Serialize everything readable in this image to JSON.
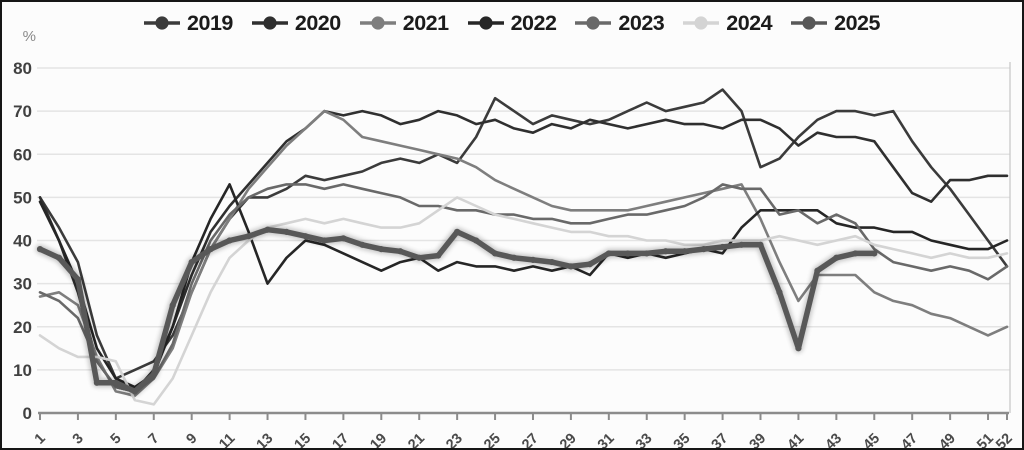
{
  "chart_data": {
    "type": "line",
    "title": "",
    "y_unit_label": "%",
    "ylim": [
      0,
      80
    ],
    "y_ticks": [
      0,
      10,
      20,
      30,
      40,
      50,
      60,
      70,
      80
    ],
    "x_ticks": [
      1,
      3,
      5,
      7,
      9,
      11,
      13,
      15,
      17,
      19,
      21,
      23,
      25,
      27,
      29,
      31,
      33,
      35,
      37,
      39,
      41,
      43,
      45,
      47,
      49,
      51,
      52
    ],
    "x_start_week": 1,
    "x_end_week": 52,
    "grid": true,
    "legend_position": "top",
    "colors": {
      "grid": "#e4e4e4",
      "axis": "#8c8c8c",
      "tick_label": "#4a4a4a",
      "y_label": "#414141",
      "unit_label": "#8a8a8a",
      "plot_right_border": "#c9c9c9"
    },
    "series": [
      {
        "name": "2019",
        "color": "#3b3b3b",
        "width": 2.6,
        "markers": false,
        "values": [
          50,
          43,
          35,
          18,
          8,
          10,
          12,
          18,
          28,
          38,
          45,
          50,
          50,
          52,
          55,
          54,
          55,
          56,
          58,
          59,
          58,
          60,
          58,
          64,
          73,
          70,
          67,
          69,
          68,
          67,
          68,
          70,
          72,
          70,
          71,
          72,
          75,
          70,
          57,
          59,
          64,
          68,
          70,
          70,
          69,
          70,
          63,
          57,
          52,
          46,
          40,
          34
        ]
      },
      {
        "name": "2020",
        "color": "#2f2f2f",
        "width": 2.6,
        "markers": false,
        "values": [
          50,
          40,
          28,
          12,
          6,
          5,
          10,
          20,
          32,
          42,
          48,
          53,
          58,
          63,
          66,
          70,
          69,
          70,
          69,
          67,
          68,
          70,
          69,
          67,
          68,
          66,
          65,
          67,
          66,
          68,
          67,
          66,
          67,
          68,
          67,
          67,
          66,
          68,
          68,
          66,
          62,
          65,
          64,
          64,
          63,
          57,
          51,
          49,
          54,
          54,
          55,
          55
        ]
      },
      {
        "name": "2021",
        "color": "#7e7e7e",
        "width": 2.6,
        "markers": false,
        "values": [
          27,
          28,
          25,
          13,
          5,
          4,
          8,
          15,
          28,
          38,
          45,
          52,
          57,
          62,
          66,
          70,
          68,
          64,
          63,
          62,
          61,
          60,
          59,
          57,
          54,
          52,
          50,
          48,
          47,
          47,
          47,
          47,
          48,
          49,
          50,
          51,
          52,
          53,
          45,
          35,
          26,
          32,
          32,
          32,
          28,
          26,
          25,
          23,
          22,
          20,
          18,
          20
        ]
      },
      {
        "name": "2022",
        "color": "#262626",
        "width": 2.6,
        "markers": false,
        "values": [
          49,
          40,
          30,
          15,
          8,
          6,
          9,
          20,
          35,
          45,
          53,
          42,
          30,
          36,
          40,
          39,
          37,
          35,
          33,
          35,
          36,
          33,
          35,
          34,
          34,
          33,
          34,
          33,
          34,
          32,
          37,
          36,
          37,
          36,
          37,
          38,
          37,
          43,
          47,
          47,
          47,
          47,
          44,
          43,
          43,
          42,
          42,
          40,
          39,
          38,
          38,
          40
        ]
      },
      {
        "name": "2023",
        "color": "#696969",
        "width": 2.6,
        "markers": false,
        "values": [
          28,
          26,
          22,
          12,
          6,
          5,
          8,
          16,
          30,
          40,
          46,
          50,
          52,
          53,
          53,
          52,
          53,
          52,
          51,
          50,
          48,
          48,
          47,
          47,
          46,
          46,
          45,
          45,
          44,
          44,
          45,
          46,
          46,
          47,
          48,
          50,
          53,
          52,
          52,
          46,
          47,
          44,
          46,
          44,
          38,
          35,
          34,
          33,
          34,
          33,
          31,
          34
        ]
      },
      {
        "name": "2024",
        "color": "#d4d4d4",
        "width": 2.6,
        "markers": false,
        "values": [
          18,
          15,
          13,
          13,
          12,
          3,
          2,
          8,
          18,
          28,
          36,
          40,
          43,
          44,
          45,
          44,
          45,
          44,
          43,
          43,
          44,
          47,
          50,
          48,
          46,
          45,
          44,
          43,
          42,
          42,
          41,
          41,
          40,
          40,
          39,
          39,
          40,
          40,
          40,
          41,
          40,
          39,
          40,
          41,
          39,
          38,
          37,
          36,
          37,
          36,
          36,
          37
        ]
      },
      {
        "name": "2025",
        "color": "#585858",
        "width": 5.5,
        "markers": true,
        "values": [
          38,
          36,
          31,
          7,
          7,
          5,
          9,
          25,
          35,
          38,
          40,
          41,
          42.5,
          42,
          41,
          40,
          40.5,
          39,
          38,
          37.5,
          36,
          36.5,
          42,
          40,
          37,
          36,
          35.5,
          35,
          34,
          34.5,
          37,
          37,
          37,
          37.5,
          37.5,
          38,
          38.5,
          39,
          39,
          28,
          15,
          33,
          36,
          37,
          37
        ]
      }
    ]
  }
}
